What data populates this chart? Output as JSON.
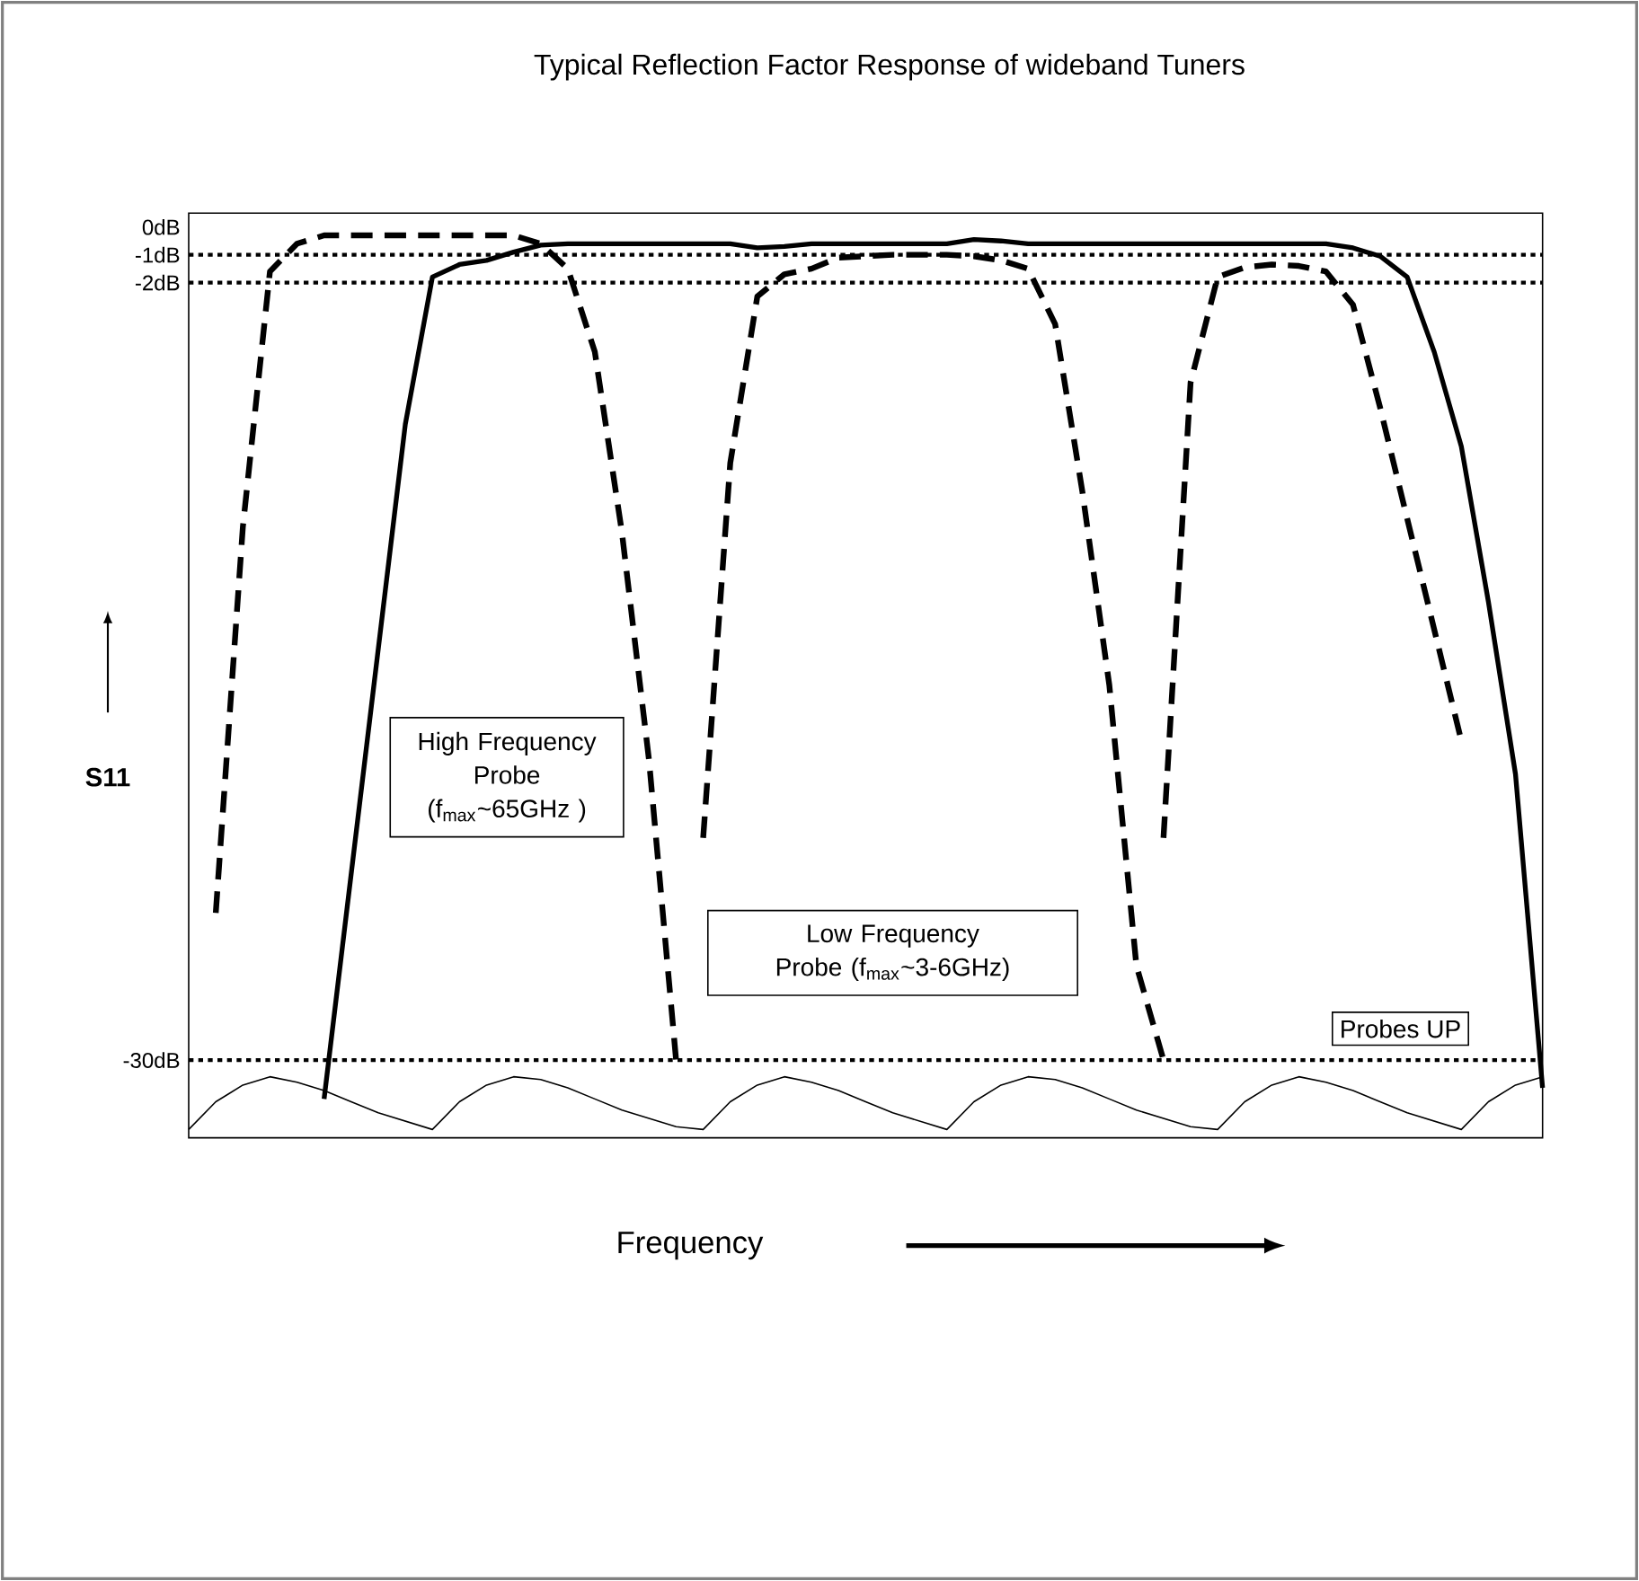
{
  "chart_data": {
    "type": "line",
    "title": "Typical Reflection Factor Response of wideband Tuners",
    "xlabel": "Frequency",
    "ylabel": "S11",
    "categories": [
      null,
      null,
      null,
      null,
      null,
      null,
      null,
      null,
      null,
      null,
      null,
      null,
      null,
      null,
      null,
      null,
      null,
      null,
      null,
      null,
      null,
      null,
      null,
      null,
      null,
      null,
      null,
      null,
      null,
      null,
      null,
      null,
      null,
      null,
      null,
      null,
      null,
      null,
      null,
      null,
      null,
      null,
      null,
      null,
      null,
      null,
      null,
      null,
      null,
      null,
      null
    ],
    "ylim": [
      -32.8,
      0.5
    ],
    "yticks": [
      {
        "value": 0,
        "label": "0dB"
      },
      {
        "value": -1,
        "label": "-1dB"
      },
      {
        "value": -2,
        "label": "-2dB"
      },
      {
        "value": -30,
        "label": "-30dB"
      }
    ],
    "tick_labels": "y",
    "grid": false,
    "marker": "none",
    "series": [
      {
        "color": "#000000",
        "line_style": "solid",
        "values": [
          null,
          null,
          null,
          null,
          null,
          -31.4,
          -23.3,
          -15.2,
          -7.1,
          -1.8,
          -1.35,
          -1.2,
          -0.9,
          -0.65,
          -0.6,
          -0.6,
          -0.6,
          -0.6,
          -0.6,
          -0.6,
          -0.6,
          -0.75,
          -0.7,
          -0.6,
          -0.6,
          -0.6,
          -0.6,
          -0.6,
          -0.6,
          -0.45,
          -0.5,
          -0.6,
          -0.6,
          -0.6,
          -0.6,
          -0.6,
          -0.6,
          -0.6,
          -0.6,
          -0.6,
          -0.6,
          -0.6,
          -0.6,
          -0.75,
          -1.05,
          -1.8,
          -4.5,
          -7.9,
          -13.5,
          -19.7,
          -31
        ]
      },
      {
        "color": "#000000",
        "line_style": "dashed",
        "values": [
          null,
          -24.7,
          -10.8,
          -1.6,
          -0.6,
          -0.3,
          -0.3,
          -0.3,
          -0.3,
          -0.3,
          -0.3,
          -0.3,
          -0.3,
          -0.6,
          -1.5,
          -4.5,
          -11,
          -19.2,
          -30,
          null,
          null,
          null,
          null,
          null,
          null,
          null,
          null,
          null,
          null,
          null,
          null,
          null,
          null,
          null,
          null,
          null,
          null,
          null,
          null,
          null,
          null,
          null,
          null,
          null,
          null,
          null,
          null,
          null,
          null,
          null,
          null
        ]
      },
      {
        "color": "#000000",
        "line_style": "dashed",
        "values": [
          null,
          null,
          null,
          null,
          null,
          null,
          null,
          null,
          null,
          null,
          null,
          null,
          null,
          null,
          null,
          null,
          null,
          null,
          null,
          -22,
          -8.5,
          -2.5,
          -1.7,
          -1.5,
          -1.1,
          -1.05,
          -1.0,
          -1.0,
          -1.0,
          -1.05,
          -1.2,
          -1.5,
          -3.5,
          -9.5,
          -16.5,
          -26.6,
          -30,
          null,
          null,
          null,
          null,
          null,
          null,
          null,
          null,
          null,
          null,
          null,
          null,
          null,
          null
        ]
      },
      {
        "color": "#000000",
        "line_style": "dashed",
        "values": [
          null,
          null,
          null,
          null,
          null,
          null,
          null,
          null,
          null,
          null,
          null,
          null,
          null,
          null,
          null,
          null,
          null,
          null,
          null,
          null,
          null,
          null,
          null,
          null,
          null,
          null,
          null,
          null,
          null,
          null,
          null,
          null,
          null,
          null,
          null,
          null,
          -22,
          -5.6,
          -1.8,
          -1.45,
          -1.35,
          -1.4,
          -1.6,
          -2.8,
          -6.5,
          -10.5,
          -14.5,
          -18.5,
          null,
          null,
          null
        ]
      },
      {
        "color": "#000000",
        "line_style": "solid",
        "values": [
          -32.5,
          -31.5,
          -30.9,
          -30.6,
          -30.8,
          -31.1,
          -31.5,
          -31.9,
          -32.2,
          -32.5,
          -31.5,
          -30.9,
          -30.6,
          -30.7,
          -31.0,
          -31.4,
          -31.8,
          -32.1,
          -32.4,
          -32.5,
          -31.5,
          -30.9,
          -30.6,
          -30.8,
          -31.1,
          -31.5,
          -31.9,
          -32.2,
          -32.5,
          -31.5,
          -30.9,
          -30.6,
          -30.7,
          -31.0,
          -31.4,
          -31.8,
          -32.1,
          -32.4,
          -32.5,
          -31.5,
          -30.9,
          -30.6,
          -30.8,
          -31.1,
          -31.5,
          -31.9,
          -32.2,
          -32.5,
          -31.5,
          -30.9,
          -30.6
        ]
      }
    ],
    "ref_lines": [
      {
        "axis": "y",
        "value": -1,
        "color": "#000000",
        "line_style": "dotted"
      },
      {
        "axis": "y",
        "value": -2,
        "color": "#000000",
        "line_style": "dotted"
      },
      {
        "axis": "y",
        "value": -30,
        "color": "#000000",
        "line_style": "dotted"
      }
    ],
    "annotations": [
      "High Frequency Probe (f$_{max}$~65GHz )",
      "Low Frequency Probe (f$_{max}$~3-6GHz)",
      "Probes UP"
    ]
  }
}
